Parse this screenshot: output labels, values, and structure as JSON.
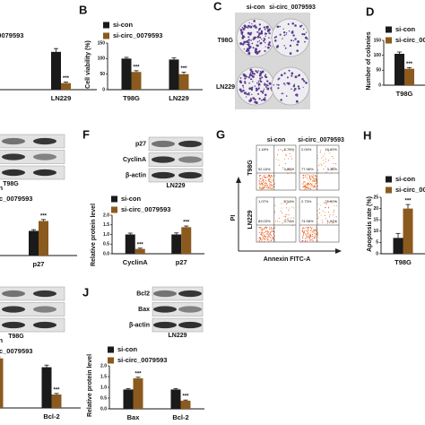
{
  "panels": {
    "letters": [
      "B",
      "C",
      "D",
      "F",
      "G",
      "H",
      "J"
    ]
  },
  "colony": {
    "columns": [
      "si-con",
      "si-circ_0079593"
    ],
    "rows": [
      "T98G",
      "LN229"
    ]
  },
  "blots": [
    {
      "cell_line": "T98G"
    },
    {
      "labels": [
        "p27",
        "CyclinA",
        "β-actin"
      ],
      "cell_line": "LN229"
    },
    {
      "cell_line": "T98G"
    },
    {
      "labels": [
        "Bcl2",
        "Bax",
        "β-actin"
      ],
      "cell_line": "LN229"
    }
  ],
  "flow": {
    "columns": [
      "si-con",
      "si-circ_0079593"
    ],
    "rows": [
      "T98G",
      "LN229"
    ],
    "y_label": "PI",
    "x_label": "Annexin FITC-A",
    "quadrants": [
      [
        "1.18%",
        "5.78%",
        "92.16%",
        "0.88%"
      ],
      [
        "2.04%",
        "16.60%",
        "77.98%",
        "3.36%"
      ],
      [
        "1.07%",
        "8.14%",
        "89.03%",
        "0.74%"
      ],
      [
        "2.73%",
        "21.00%",
        "74.98%",
        "1.94%"
      ]
    ]
  },
  "chart_data": [
    {
      "type": "bar",
      "categories": [
        "LN229"
      ],
      "series": [
        {
          "name": "si-con",
          "color": "#1a1a1a",
          "values": [
            1.15
          ],
          "errors": [
            0.1
          ]
        },
        {
          "name": "si-circ_0079593",
          "color": "#8b5a1e",
          "values": [
            0.2
          ],
          "errors": [
            0.03
          ]
        }
      ],
      "ylim": [
        0,
        1.5
      ],
      "significance": [
        "***"
      ]
    },
    {
      "type": "bar",
      "categories": [
        "T98G",
        "LN229"
      ],
      "series": [
        {
          "name": "si-con",
          "color": "#1a1a1a",
          "values": [
            100,
            97
          ],
          "errors": [
            4,
            5
          ]
        },
        {
          "name": "si-circ_0079593",
          "color": "#8b5a1e",
          "values": [
            57,
            50
          ],
          "errors": [
            4,
            6
          ]
        }
      ],
      "ylim": [
        0,
        150
      ],
      "yticks": [
        0,
        50,
        100,
        150
      ],
      "ylabel": "Cell viability (%)",
      "significance": [
        "***",
        "***"
      ]
    },
    {
      "type": "bar",
      "categories": [
        "T98G"
      ],
      "series": [
        {
          "name": "si-con",
          "color": "#1a1a1a",
          "values": [
            105
          ],
          "errors": [
            6
          ]
        },
        {
          "name": "si-circ_0079593",
          "color": "#8b5a1e",
          "values": [
            55
          ],
          "errors": [
            4
          ]
        }
      ],
      "ylim": [
        0,
        150
      ],
      "yticks": [
        0,
        50,
        100,
        150
      ],
      "ylabel": "Number of colonies",
      "significance": [
        "***"
      ]
    },
    {
      "type": "bar",
      "categories": [
        "p27"
      ],
      "series": [
        {
          "name": "si-con",
          "color": "#1a1a1a",
          "values": [
            1.0
          ],
          "errors": [
            0.05
          ]
        },
        {
          "name": "si-circ_0079593",
          "color": "#8b5a1e",
          "values": [
            1.4
          ],
          "errors": [
            0.06
          ]
        }
      ],
      "ylim": [
        0,
        2
      ],
      "significance": [
        "***"
      ]
    },
    {
      "type": "bar",
      "categories": [
        "CyclinA",
        "p27"
      ],
      "series": [
        {
          "name": "si-con",
          "color": "#1a1a1a",
          "values": [
            1.0,
            1.0
          ],
          "errors": [
            0.07,
            0.08
          ]
        },
        {
          "name": "si-circ_0079593",
          "color": "#8b5a1e",
          "values": [
            0.25,
            1.38
          ],
          "errors": [
            0.04,
            0.06
          ]
        }
      ],
      "ylim": [
        0,
        2
      ],
      "yticks": [
        {
          "value": 0,
          "label": "0.0"
        },
        0.5,
        {
          "value": 1,
          "label": "1.0"
        },
        1.5,
        {
          "value": 2,
          "label": "2.0"
        }
      ],
      "ylabel": "Relative protein level",
      "significance": [
        "***",
        "***"
      ]
    },
    {
      "type": "bar",
      "categories": [
        "T98G"
      ],
      "series": [
        {
          "name": "si-con",
          "color": "#1a1a1a",
          "values": [
            7
          ],
          "errors": [
            2
          ]
        },
        {
          "name": "si-circ_0079593",
          "color": "#8b5a1e",
          "values": [
            20
          ],
          "errors": [
            1.8
          ]
        }
      ],
      "ylim": [
        0,
        25
      ],
      "yticks": [
        0,
        5,
        10,
        15,
        20,
        25
      ],
      "ylabel": "Apoptosis rate (%)",
      "significance": [
        "***"
      ]
    },
    {
      "type": "bar",
      "categories": [
        null,
        "Bcl-2"
      ],
      "series": [
        {
          "name": "si-con",
          "color": "#1a1a1a",
          "values": [
            null,
            1.15
          ],
          "errors": [
            null,
            0.06
          ]
        },
        {
          "name": "si-circ_0079593",
          "color": "#8b5a1e",
          "values": [
            1.4,
            0.38
          ],
          "errors": [
            0.04,
            0.03
          ]
        }
      ],
      "ylim": [
        0,
        2
      ],
      "significance": [
        null,
        "***"
      ]
    },
    {
      "type": "bar",
      "categories": [
        "Bax",
        "Bcl-2"
      ],
      "series": [
        {
          "name": "si-con",
          "color": "#1a1a1a",
          "values": [
            0.9,
            0.9
          ],
          "errors": [
            0.04,
            0.04
          ]
        },
        {
          "name": "si-circ_0079593",
          "color": "#8b5a1e",
          "values": [
            1.42,
            0.38
          ],
          "errors": [
            0.05,
            0.03
          ]
        }
      ],
      "ylim": [
        0,
        2
      ],
      "yticks": [
        {
          "value": 0,
          "label": "0.0"
        },
        0.5,
        {
          "value": 1,
          "label": "1.0"
        },
        1.5,
        {
          "value": 2,
          "label": "2.0"
        }
      ],
      "ylabel": "Relative protein level",
      "significance": [
        "***",
        "***"
      ]
    }
  ]
}
